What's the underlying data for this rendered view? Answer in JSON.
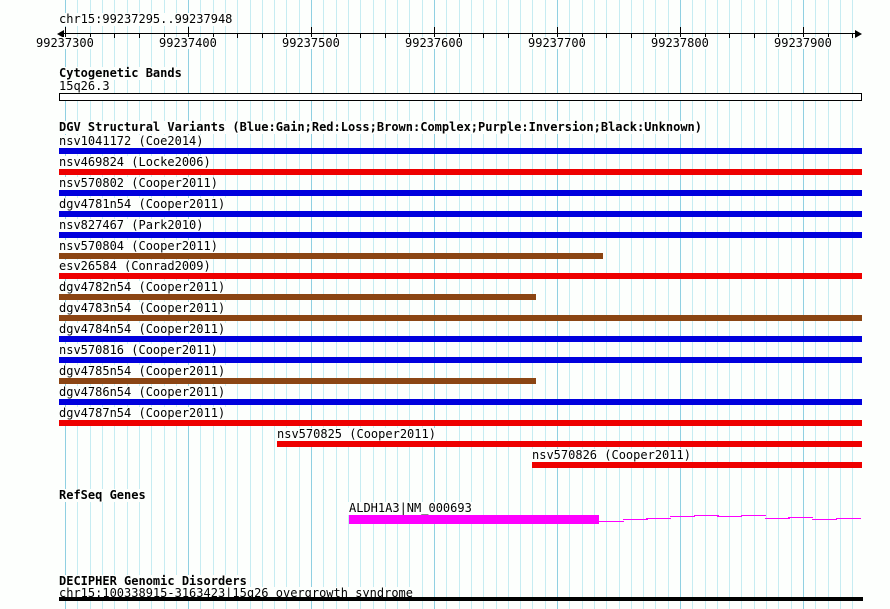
{
  "region": {
    "title": "chr15:99237295..99237948",
    "start": 99237295,
    "end": 99237948
  },
  "ruler": {
    "major_tick_labels": [
      "99237300",
      "99237400",
      "99237500",
      "99237600",
      "99237700",
      "99237800",
      "99237900"
    ],
    "major_step_bp": 100,
    "minor_step_bp": 20,
    "grid_step_bp": 10
  },
  "colors": {
    "gain": "#0000dd",
    "loss": "#ee0000",
    "complex": "#8b4513",
    "inversion": "#800080",
    "unknown": "#000000",
    "gene": "#ff00ff",
    "decipher": "#000000",
    "grid_minor": "#c6ecf2",
    "grid_major": "#90d0e2",
    "band_fill": "#ffffff"
  },
  "sections": {
    "cytogenetic": {
      "header": "Cytogenetic Bands",
      "bands": [
        {
          "name": "15q26.3",
          "start": 99237295,
          "end": 99237948
        }
      ]
    },
    "dgv": {
      "header": "DGV Structural Variants (Blue:Gain;Red:Loss;Brown:Complex;Purple:Inversion;Black:Unknown)",
      "variants": [
        {
          "label": "nsv1041172 (Coe2014)",
          "type": "gain",
          "start": 99237295,
          "end": 99237948
        },
        {
          "label": "nsv469824 (Locke2006)",
          "type": "loss",
          "start": 99237295,
          "end": 99237948
        },
        {
          "label": "nsv570802 (Cooper2011)",
          "type": "gain",
          "start": 99237295,
          "end": 99237948
        },
        {
          "label": "dgv4781n54 (Cooper2011)",
          "type": "gain",
          "start": 99237295,
          "end": 99237948
        },
        {
          "label": "nsv827467 (Park2010)",
          "type": "gain",
          "start": 99237295,
          "end": 99237948
        },
        {
          "label": "nsv570804 (Cooper2011)",
          "type": "complex",
          "start": 99237295,
          "end": 99237737
        },
        {
          "label": "esv26584 (Conrad2009)",
          "type": "loss",
          "start": 99237295,
          "end": 99237948
        },
        {
          "label": "dgv4782n54 (Cooper2011)",
          "type": "complex",
          "start": 99237295,
          "end": 99237683
        },
        {
          "label": "dgv4783n54 (Cooper2011)",
          "type": "complex",
          "start": 99237295,
          "end": 99237948
        },
        {
          "label": "dgv4784n54 (Cooper2011)",
          "type": "gain",
          "start": 99237295,
          "end": 99237948
        },
        {
          "label": "nsv570816 (Cooper2011)",
          "type": "gain",
          "start": 99237295,
          "end": 99237948
        },
        {
          "label": "dgv4785n54 (Cooper2011)",
          "type": "complex",
          "start": 99237295,
          "end": 99237683
        },
        {
          "label": "dgv4786n54 (Cooper2011)",
          "type": "gain",
          "start": 99237295,
          "end": 99237948
        },
        {
          "label": "dgv4787n54 (Cooper2011)",
          "type": "loss",
          "start": 99237295,
          "end": 99237948
        },
        {
          "label": "nsv570825 (Cooper2011)",
          "type": "loss",
          "start": 99237472,
          "end": 99237948
        },
        {
          "label": "nsv570826 (Cooper2011)",
          "type": "loss",
          "start": 99237680,
          "end": 99237948
        }
      ]
    },
    "refseq": {
      "header": "RefSeq Genes",
      "genes": [
        {
          "label": "ALDH1A3|NM_000693",
          "thick_start": 99237531,
          "thick_end": 99237734,
          "tail_end": 99237946
        }
      ]
    },
    "decipher": {
      "header": "DECIPHER Genomic Disorders",
      "entries": [
        {
          "label": "chr15:100338915-3163423|15q26 overgrowth syndrome",
          "start": 99237295,
          "end": 99237948
        }
      ]
    }
  }
}
